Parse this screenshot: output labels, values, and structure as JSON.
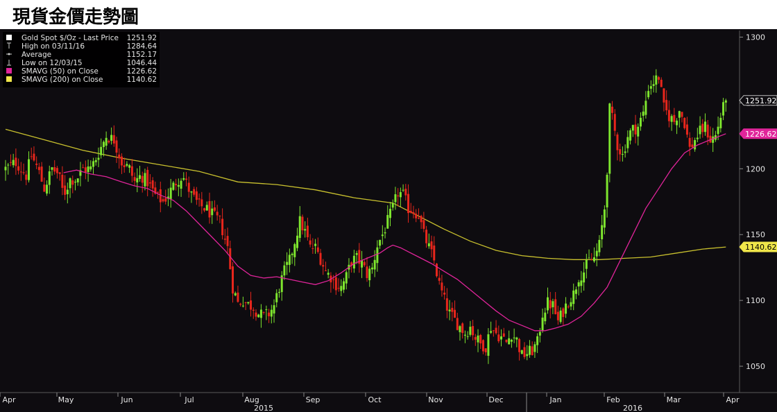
{
  "page": {
    "title": "現貨金價走勢圖"
  },
  "colors": {
    "background": "#0e0c10",
    "up_candle": "#7ee62e",
    "down_candle": "#e8261c",
    "sma50": "#e0249a",
    "sma200": "#c9c12e",
    "axis_text": "#e6e6e6",
    "legend_bg": "#000000"
  },
  "chart_data": {
    "type": "candlestick",
    "title": "",
    "ylim": [
      1030,
      1305
    ],
    "y_ticks": [
      "1050",
      "1100",
      "1150",
      "1200",
      "1250",
      "1300"
    ],
    "x_months": [
      "Apr",
      "May",
      "Jun",
      "Jul",
      "Aug",
      "Sep",
      "Oct",
      "Nov",
      "Dec",
      "Jan",
      "Feb",
      "Mar",
      "Apr"
    ],
    "x_years": [
      "2015",
      "2016"
    ],
    "legend": [
      {
        "icon": "square-white-icon",
        "label": "Gold Spot $/Oz - Last Price",
        "value": "1251.92"
      },
      {
        "icon": "high-marker-icon",
        "label": "High on 03/11/16",
        "value": "1284.64"
      },
      {
        "icon": "average-marker-icon",
        "label": "Average",
        "value": "1152.17"
      },
      {
        "icon": "low-marker-icon",
        "label": "Low on 12/03/15",
        "value": "1046.44"
      },
      {
        "icon": "square-magenta-icon",
        "label": "SMAVG (50) on Close",
        "value": "1226.62"
      },
      {
        "icon": "square-yellow-icon",
        "label": "SMAVG (200) on Close",
        "value": "1140.62"
      }
    ],
    "last_labels": [
      {
        "name": "last-price",
        "value": 1251.92,
        "text": "1251.92"
      },
      {
        "name": "sma50",
        "value": 1226.62,
        "text": "1226.62"
      },
      {
        "name": "sma200",
        "value": 1140.62,
        "text": "1140.62"
      }
    ],
    "close_path": [
      [
        0,
        1200
      ],
      [
        8,
        1205
      ],
      [
        16,
        1195
      ],
      [
        20,
        1210
      ],
      [
        25,
        1200
      ],
      [
        30,
        1185
      ],
      [
        36,
        1200
      ],
      [
        41,
        1196
      ],
      [
        45,
        1180
      ],
      [
        50,
        1192
      ],
      [
        55,
        1192
      ],
      [
        60,
        1200
      ],
      [
        66,
        1200
      ],
      [
        71,
        1210
      ],
      [
        78,
        1225
      ],
      [
        84,
        1222
      ],
      [
        90,
        1205
      ],
      [
        96,
        1200
      ],
      [
        100,
        1190
      ],
      [
        105,
        1195
      ],
      [
        110,
        1190
      ],
      [
        116,
        1180
      ],
      [
        122,
        1175
      ],
      [
        127,
        1182
      ],
      [
        132,
        1190
      ],
      [
        137,
        1195
      ],
      [
        144,
        1180
      ],
      [
        150,
        1172
      ],
      [
        155,
        1170
      ],
      [
        160,
        1165
      ],
      [
        166,
        1160
      ],
      [
        172,
        1140
      ],
      [
        176,
        1110
      ],
      [
        180,
        1098
      ],
      [
        184,
        1100
      ],
      [
        188,
        1097
      ],
      [
        192,
        1095
      ],
      [
        196,
        1090
      ],
      [
        200,
        1088
      ],
      [
        204,
        1090
      ],
      [
        208,
        1096
      ],
      [
        212,
        1110
      ],
      [
        216,
        1122
      ],
      [
        220,
        1130
      ],
      [
        224,
        1145
      ],
      [
        228,
        1160
      ],
      [
        232,
        1152
      ],
      [
        236,
        1140
      ],
      [
        240,
        1140
      ],
      [
        244,
        1132
      ],
      [
        248,
        1122
      ],
      [
        252,
        1118
      ],
      [
        256,
        1112
      ],
      [
        260,
        1110
      ],
      [
        264,
        1118
      ],
      [
        268,
        1130
      ],
      [
        272,
        1132
      ],
      [
        276,
        1128
      ],
      [
        280,
        1120
      ],
      [
        284,
        1124
      ],
      [
        288,
        1142
      ],
      [
        292,
        1150
      ],
      [
        296,
        1160
      ],
      [
        300,
        1170
      ],
      [
        304,
        1182
      ],
      [
        308,
        1180
      ],
      [
        312,
        1170
      ],
      [
        316,
        1168
      ],
      [
        320,
        1165
      ],
      [
        324,
        1150
      ],
      [
        328,
        1140
      ],
      [
        332,
        1130
      ],
      [
        336,
        1112
      ],
      [
        340,
        1100
      ],
      [
        344,
        1090
      ],
      [
        348,
        1085
      ],
      [
        352,
        1080
      ],
      [
        356,
        1075
      ],
      [
        360,
        1080
      ],
      [
        364,
        1072
      ],
      [
        368,
        1067
      ],
      [
        372,
        1065
      ],
      [
        376,
        1080
      ],
      [
        380,
        1075
      ],
      [
        384,
        1072
      ],
      [
        388,
        1068
      ],
      [
        392,
        1075
      ],
      [
        396,
        1070
      ],
      [
        400,
        1058
      ],
      [
        404,
        1060
      ],
      [
        408,
        1062
      ],
      [
        412,
        1068
      ],
      [
        416,
        1090
      ],
      [
        420,
        1098
      ],
      [
        424,
        1096
      ],
      [
        428,
        1084
      ],
      [
        432,
        1092
      ],
      [
        436,
        1100
      ],
      [
        440,
        1105
      ],
      [
        444,
        1118
      ],
      [
        448,
        1122
      ],
      [
        452,
        1130
      ],
      [
        456,
        1132
      ],
      [
        460,
        1142
      ],
      [
        464,
        1170
      ],
      [
        466,
        1200
      ],
      [
        468,
        1245
      ],
      [
        470,
        1238
      ],
      [
        474,
        1218
      ],
      [
        478,
        1210
      ],
      [
        482,
        1225
      ],
      [
        486,
        1230
      ],
      [
        490,
        1232
      ],
      [
        494,
        1242
      ],
      [
        498,
        1262
      ],
      [
        502,
        1266
      ],
      [
        506,
        1270
      ],
      [
        510,
        1246
      ],
      [
        514,
        1240
      ],
      [
        518,
        1236
      ],
      [
        522,
        1245
      ],
      [
        526,
        1235
      ],
      [
        530,
        1215
      ],
      [
        534,
        1222
      ],
      [
        538,
        1228
      ],
      [
        542,
        1232
      ],
      [
        546,
        1222
      ],
      [
        550,
        1225
      ],
      [
        554,
        1240
      ],
      [
        558,
        1252
      ]
    ],
    "sma50_path": [
      [
        45,
        1197
      ],
      [
        55,
        1199
      ],
      [
        66,
        1196
      ],
      [
        78,
        1194
      ],
      [
        90,
        1190
      ],
      [
        100,
        1187
      ],
      [
        110,
        1185
      ],
      [
        120,
        1180
      ],
      [
        130,
        1176
      ],
      [
        140,
        1168
      ],
      [
        150,
        1158
      ],
      [
        160,
        1148
      ],
      [
        170,
        1138
      ],
      [
        180,
        1126
      ],
      [
        190,
        1119
      ],
      [
        200,
        1117
      ],
      [
        210,
        1118
      ],
      [
        220,
        1116
      ],
      [
        230,
        1114
      ],
      [
        240,
        1112
      ],
      [
        250,
        1115
      ],
      [
        260,
        1121
      ],
      [
        270,
        1128
      ],
      [
        280,
        1132
      ],
      [
        290,
        1136
      ],
      [
        296,
        1140
      ],
      [
        300,
        1142
      ],
      [
        306,
        1140
      ],
      [
        312,
        1137
      ],
      [
        320,
        1133
      ],
      [
        330,
        1128
      ],
      [
        340,
        1122
      ],
      [
        350,
        1116
      ],
      [
        360,
        1108
      ],
      [
        370,
        1100
      ],
      [
        380,
        1092
      ],
      [
        390,
        1085
      ],
      [
        400,
        1081
      ],
      [
        410,
        1077
      ],
      [
        418,
        1077
      ],
      [
        426,
        1079
      ],
      [
        436,
        1082
      ],
      [
        446,
        1088
      ],
      [
        456,
        1098
      ],
      [
        466,
        1110
      ],
      [
        476,
        1130
      ],
      [
        486,
        1150
      ],
      [
        496,
        1170
      ],
      [
        506,
        1185
      ],
      [
        516,
        1200
      ],
      [
        526,
        1212
      ],
      [
        536,
        1218
      ],
      [
        546,
        1222
      ],
      [
        558,
        1226.6
      ]
    ],
    "sma200_path": [
      [
        0,
        1230
      ],
      [
        30,
        1222
      ],
      [
        60,
        1214
      ],
      [
        90,
        1208
      ],
      [
        120,
        1203
      ],
      [
        150,
        1198
      ],
      [
        180,
        1190
      ],
      [
        210,
        1188
      ],
      [
        240,
        1184
      ],
      [
        270,
        1178
      ],
      [
        300,
        1174
      ],
      [
        320,
        1164
      ],
      [
        340,
        1154
      ],
      [
        360,
        1145
      ],
      [
        380,
        1138
      ],
      [
        400,
        1134
      ],
      [
        420,
        1132
      ],
      [
        440,
        1131
      ],
      [
        460,
        1131
      ],
      [
        480,
        1132
      ],
      [
        500,
        1133
      ],
      [
        520,
        1136
      ],
      [
        540,
        1139
      ],
      [
        558,
        1140.6
      ]
    ]
  }
}
